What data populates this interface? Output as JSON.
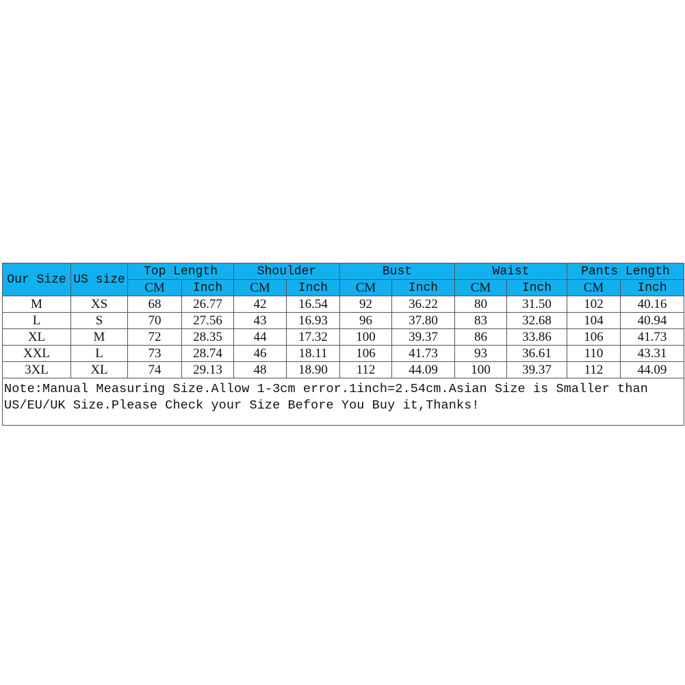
{
  "header": {
    "our_size": "Our Size",
    "us_size": "US size",
    "groups": [
      "Top Length",
      "Shoulder",
      "Bust",
      "Waist",
      "Pants Length"
    ],
    "units": [
      "CM",
      "Inch"
    ]
  },
  "rows": [
    [
      "M",
      "XS",
      "68",
      "26.77",
      "42",
      "16.54",
      "92",
      "36.22",
      "80",
      "31.50",
      "102",
      "40.16"
    ],
    [
      "L",
      "S",
      "70",
      "27.56",
      "43",
      "16.93",
      "96",
      "37.80",
      "83",
      "32.68",
      "104",
      "40.94"
    ],
    [
      "XL",
      "M",
      "72",
      "28.35",
      "44",
      "17.32",
      "100",
      "39.37",
      "86",
      "33.86",
      "106",
      "41.73"
    ],
    [
      "XXL",
      "L",
      "73",
      "28.74",
      "46",
      "18.11",
      "106",
      "41.73",
      "93",
      "36.61",
      "110",
      "43.31"
    ],
    [
      "3XL",
      "XL",
      "74",
      "29.13",
      "48",
      "18.90",
      "112",
      "44.09",
      "100",
      "39.37",
      "112",
      "44.09"
    ]
  ],
  "note": "Note:Manual Measuring Size.Allow 1-3cm error.1inch=2.54cm.Asian Size is Smaller than US/EU/UK Size.Please Check your Size Before You Buy it,Thanks!",
  "colors": {
    "header_bg": "#12b0ef",
    "border": "#555555"
  }
}
